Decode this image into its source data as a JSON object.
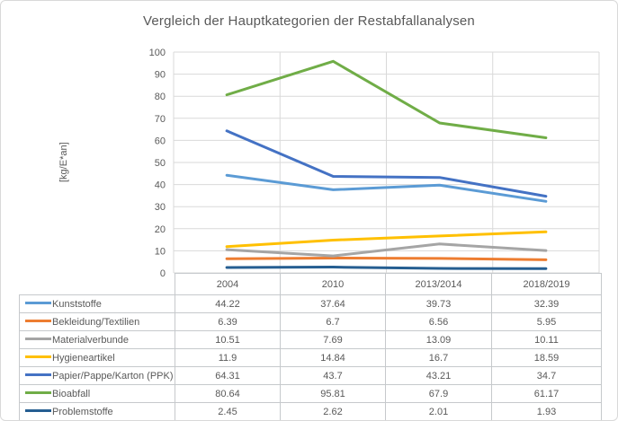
{
  "chart_data": {
    "type": "line",
    "title": "Vergleich der Hauptkategorien der Restabfallanalysen",
    "xlabel": "",
    "ylabel": "[kg/E*an]",
    "categories": [
      "2004",
      "2010",
      "2013/2014",
      "2018/2019"
    ],
    "series": [
      {
        "name": "Kunststoffe",
        "color": "#5B9BD5",
        "values": [
          44.22,
          37.64,
          39.73,
          32.39
        ]
      },
      {
        "name": "Bekleidung/Textilien",
        "color": "#ED7D31",
        "values": [
          6.39,
          6.7,
          6.56,
          5.95
        ]
      },
      {
        "name": "Materialverbunde",
        "color": "#A5A5A5",
        "values": [
          10.51,
          7.69,
          13.09,
          10.11
        ]
      },
      {
        "name": "Hygieneartikel",
        "color": "#FFC000",
        "values": [
          11.9,
          14.84,
          16.7,
          18.59
        ]
      },
      {
        "name": "Papier/Pappe/Karton (PPK)",
        "color": "#4472C4",
        "values": [
          64.31,
          43.7,
          43.21,
          34.7
        ]
      },
      {
        "name": "Bioabfall",
        "color": "#70AD47",
        "values": [
          80.64,
          95.81,
          67.9,
          61.17
        ]
      },
      {
        "name": "Problemstoffe",
        "color": "#255E91",
        "values": [
          2.45,
          2.62,
          2.01,
          1.93
        ]
      }
    ],
    "ylim": [
      0,
      100
    ],
    "ytick_step": 10,
    "grid": true,
    "legend_position": "data-table-below-chart"
  },
  "colors": {
    "text": "#595959",
    "gridline": "#D9D9D9",
    "table_border": "#C6C9CC",
    "figure_border": "#D9D9D9",
    "background": "#FFFFFF"
  }
}
